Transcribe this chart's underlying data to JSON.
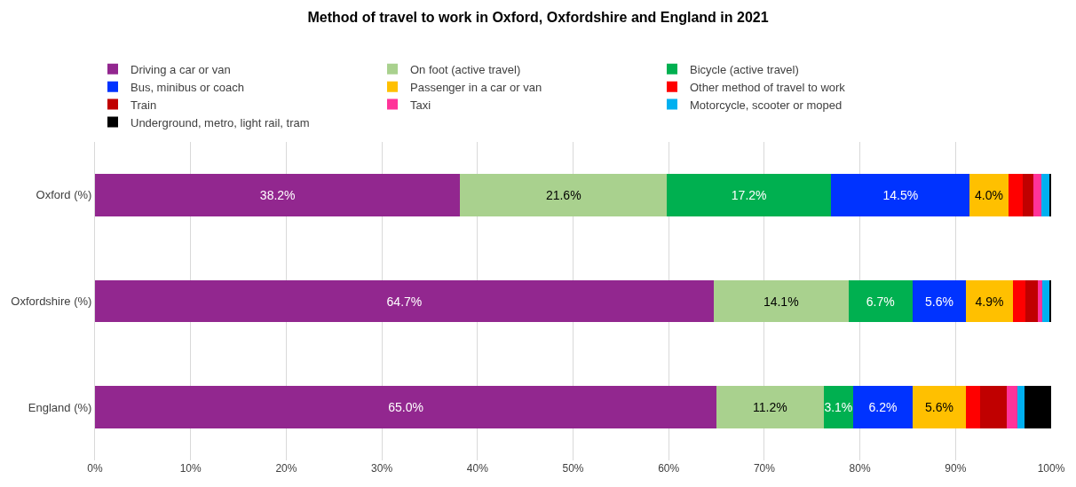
{
  "chart_data": {
    "type": "bar",
    "orientation": "horizontal",
    "stacked": true,
    "title": "Method of travel to work in Oxford, Oxfordshire and England in 2021",
    "categories": [
      "Oxford (%)",
      "Oxfordshire (%)",
      "England (%)"
    ],
    "series": [
      {
        "name": "Driving a car or van",
        "color": "#92278f",
        "values": [
          38.2,
          64.7,
          65.0
        ],
        "value_labels": [
          "38.2%",
          "64.7%",
          "65.0%"
        ]
      },
      {
        "name": "On foot (active travel)",
        "color": "#a9d18e",
        "values": [
          21.6,
          14.1,
          11.2
        ],
        "value_labels": [
          "21.6%",
          "14.1%",
          "11.2%"
        ]
      },
      {
        "name": "Bicycle (active travel)",
        "color": "#00b050",
        "values": [
          17.2,
          6.7,
          3.1
        ],
        "value_labels": [
          "17.2%",
          "6.7%",
          "3.1%"
        ]
      },
      {
        "name": "Bus, minibus or coach",
        "color": "#0033ff",
        "values": [
          14.5,
          5.6,
          6.2
        ],
        "value_labels": [
          "14.5%",
          "5.6%",
          "6.2%"
        ]
      },
      {
        "name": "Passenger in a car or van",
        "color": "#ffc000",
        "values": [
          4.0,
          4.9,
          5.6
        ],
        "value_labels": [
          "4.0%",
          "4.9%",
          "5.6%"
        ]
      },
      {
        "name": "Other method of travel to work",
        "color": "#ff0000",
        "values": [
          1.5,
          1.3,
          1.5
        ]
      },
      {
        "name": "Train",
        "color": "#c00000",
        "values": [
          1.1,
          1.3,
          2.8
        ]
      },
      {
        "name": "Taxi",
        "color": "#ff3399",
        "values": [
          0.9,
          0.5,
          1.1
        ]
      },
      {
        "name": "Motorcycle, scooter or moped",
        "color": "#00b0f0",
        "values": [
          0.8,
          0.7,
          0.7
        ]
      },
      {
        "name": "Underground, metro, light rail, tram",
        "color": "#000000",
        "values": [
          0.2,
          0.2,
          2.8
        ]
      }
    ],
    "xlim": [
      0,
      100
    ],
    "xticks": [
      {
        "value": 0,
        "label": "0%"
      },
      {
        "value": 10,
        "label": "10%"
      },
      {
        "value": 20,
        "label": "20%"
      },
      {
        "value": 30,
        "label": "30%"
      },
      {
        "value": 40,
        "label": "40%"
      },
      {
        "value": 50,
        "label": "50%"
      },
      {
        "value": 60,
        "label": "60%"
      },
      {
        "value": 70,
        "label": "70%"
      },
      {
        "value": 80,
        "label": "80%"
      },
      {
        "value": 90,
        "label": "90%"
      },
      {
        "value": 100,
        "label": "100%"
      }
    ],
    "grid": "x",
    "legend": "top"
  }
}
